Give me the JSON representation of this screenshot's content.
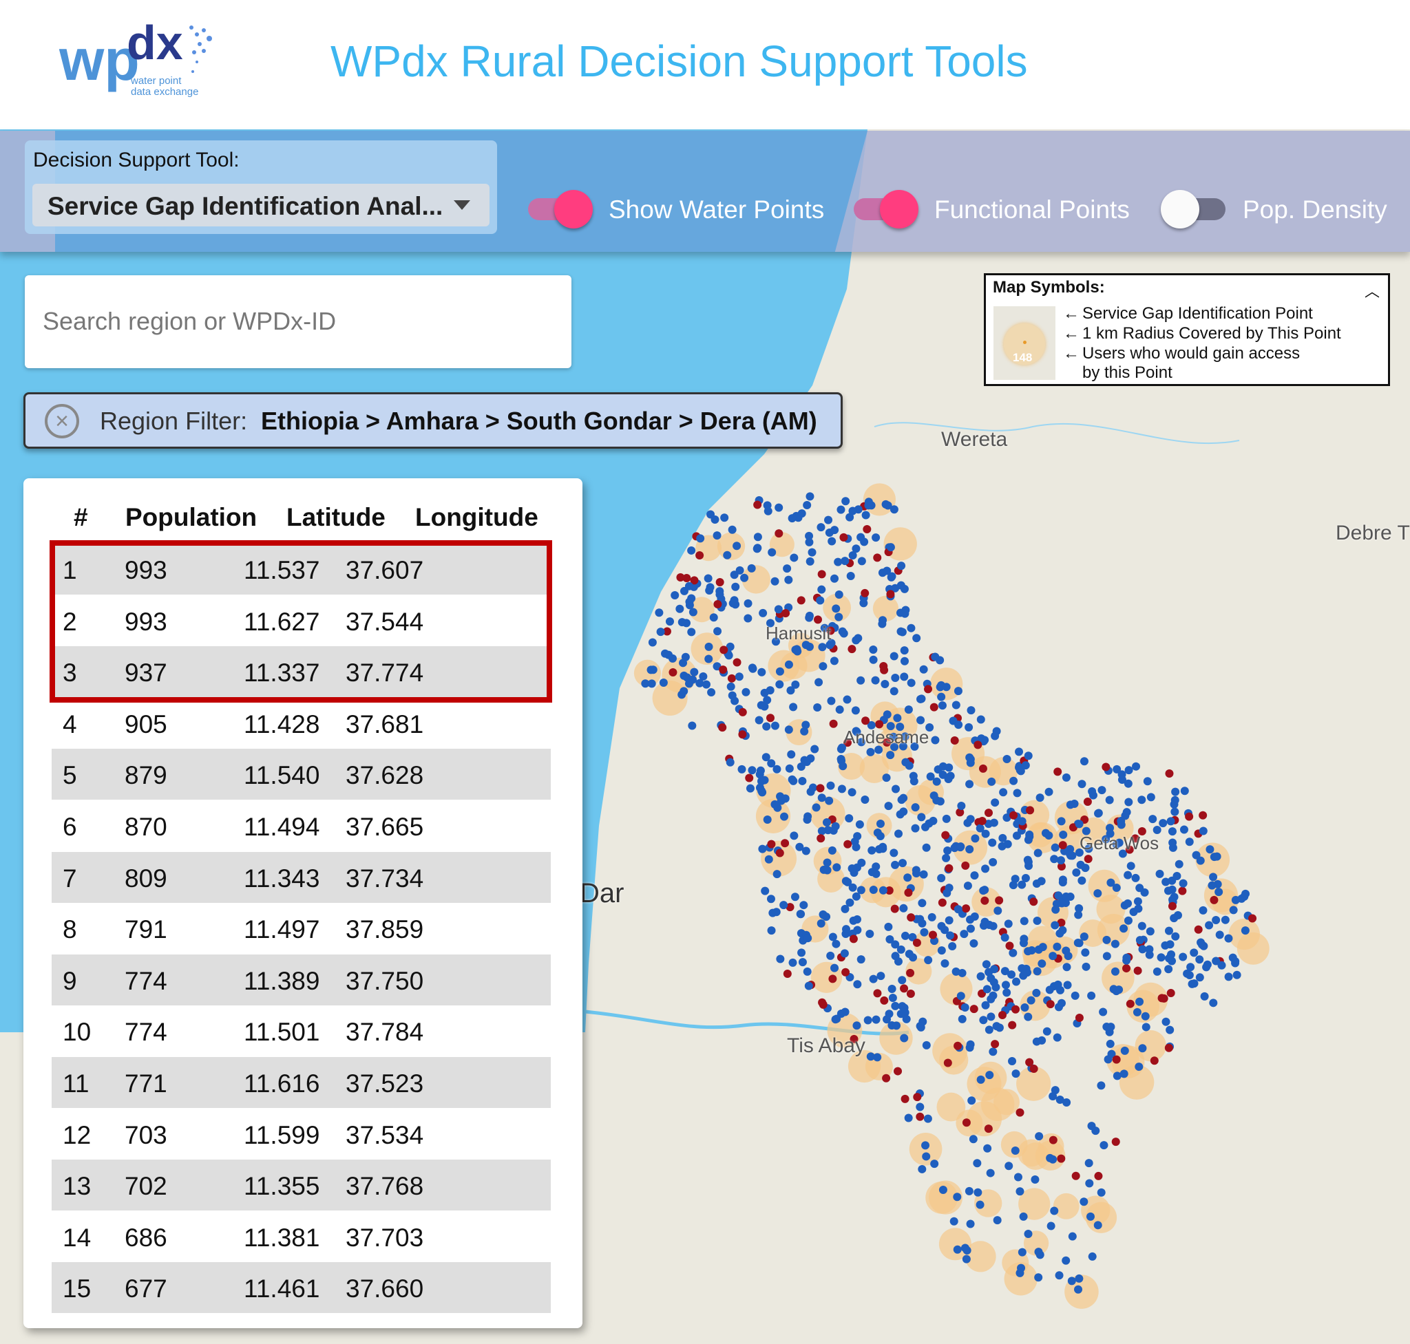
{
  "header": {
    "title": "WPdx Rural Decision Support Tools",
    "logo_text": "wpdx",
    "logo_sub": "water point data exchange"
  },
  "toolbar": {
    "dst_label": "Decision Support Tool:",
    "dst_value": "Service Gap Identification Anal...",
    "toggles": [
      {
        "label": "Show Water Points",
        "on": true
      },
      {
        "label": "Functional Points",
        "on": true
      },
      {
        "label": "Pop. Density",
        "on": false
      }
    ]
  },
  "search": {
    "placeholder": "Search region or WPDx-ID"
  },
  "region_filter": {
    "label": "Region Filter:",
    "value": "Ethiopia > Amhara > South Gondar > Dera (AM)"
  },
  "table": {
    "headers": [
      "#",
      "Population",
      "Latitude",
      "Longitude"
    ],
    "rows": [
      [
        "1",
        "993",
        "11.537",
        "37.607"
      ],
      [
        "2",
        "993",
        "11.627",
        "37.544"
      ],
      [
        "3",
        "937",
        "11.337",
        "37.774"
      ],
      [
        "4",
        "905",
        "11.428",
        "37.681"
      ],
      [
        "5",
        "879",
        "11.540",
        "37.628"
      ],
      [
        "6",
        "870",
        "11.494",
        "37.665"
      ],
      [
        "7",
        "809",
        "11.343",
        "37.734"
      ],
      [
        "8",
        "791",
        "11.497",
        "37.859"
      ],
      [
        "9",
        "774",
        "11.389",
        "37.750"
      ],
      [
        "10",
        "774",
        "11.501",
        "37.784"
      ],
      [
        "11",
        "771",
        "11.616",
        "37.523"
      ],
      [
        "12",
        "703",
        "11.599",
        "37.534"
      ],
      [
        "13",
        "702",
        "11.355",
        "37.768"
      ],
      [
        "14",
        "686",
        "11.381",
        "37.703"
      ],
      [
        "15",
        "677",
        "11.461",
        "37.660"
      ]
    ]
  },
  "legend": {
    "title": "Map Symbols:",
    "sample_value": "148",
    "items": [
      "Service Gap Identification Point",
      "1 km Radius Covered by This Point",
      "Users who would gain access",
      "by this Point"
    ]
  },
  "map_labels": [
    "Wereta",
    "Debre T",
    "Hamusit",
    "Andesame",
    "Geta Wos",
    "Dar",
    "Tis Abay"
  ],
  "colors": {
    "functional": "#1f5fbf",
    "non_functional": "#a0101a",
    "gap": "#f5c88a",
    "toggle_on": "#ff3d7f",
    "title": "#3db6f0"
  }
}
